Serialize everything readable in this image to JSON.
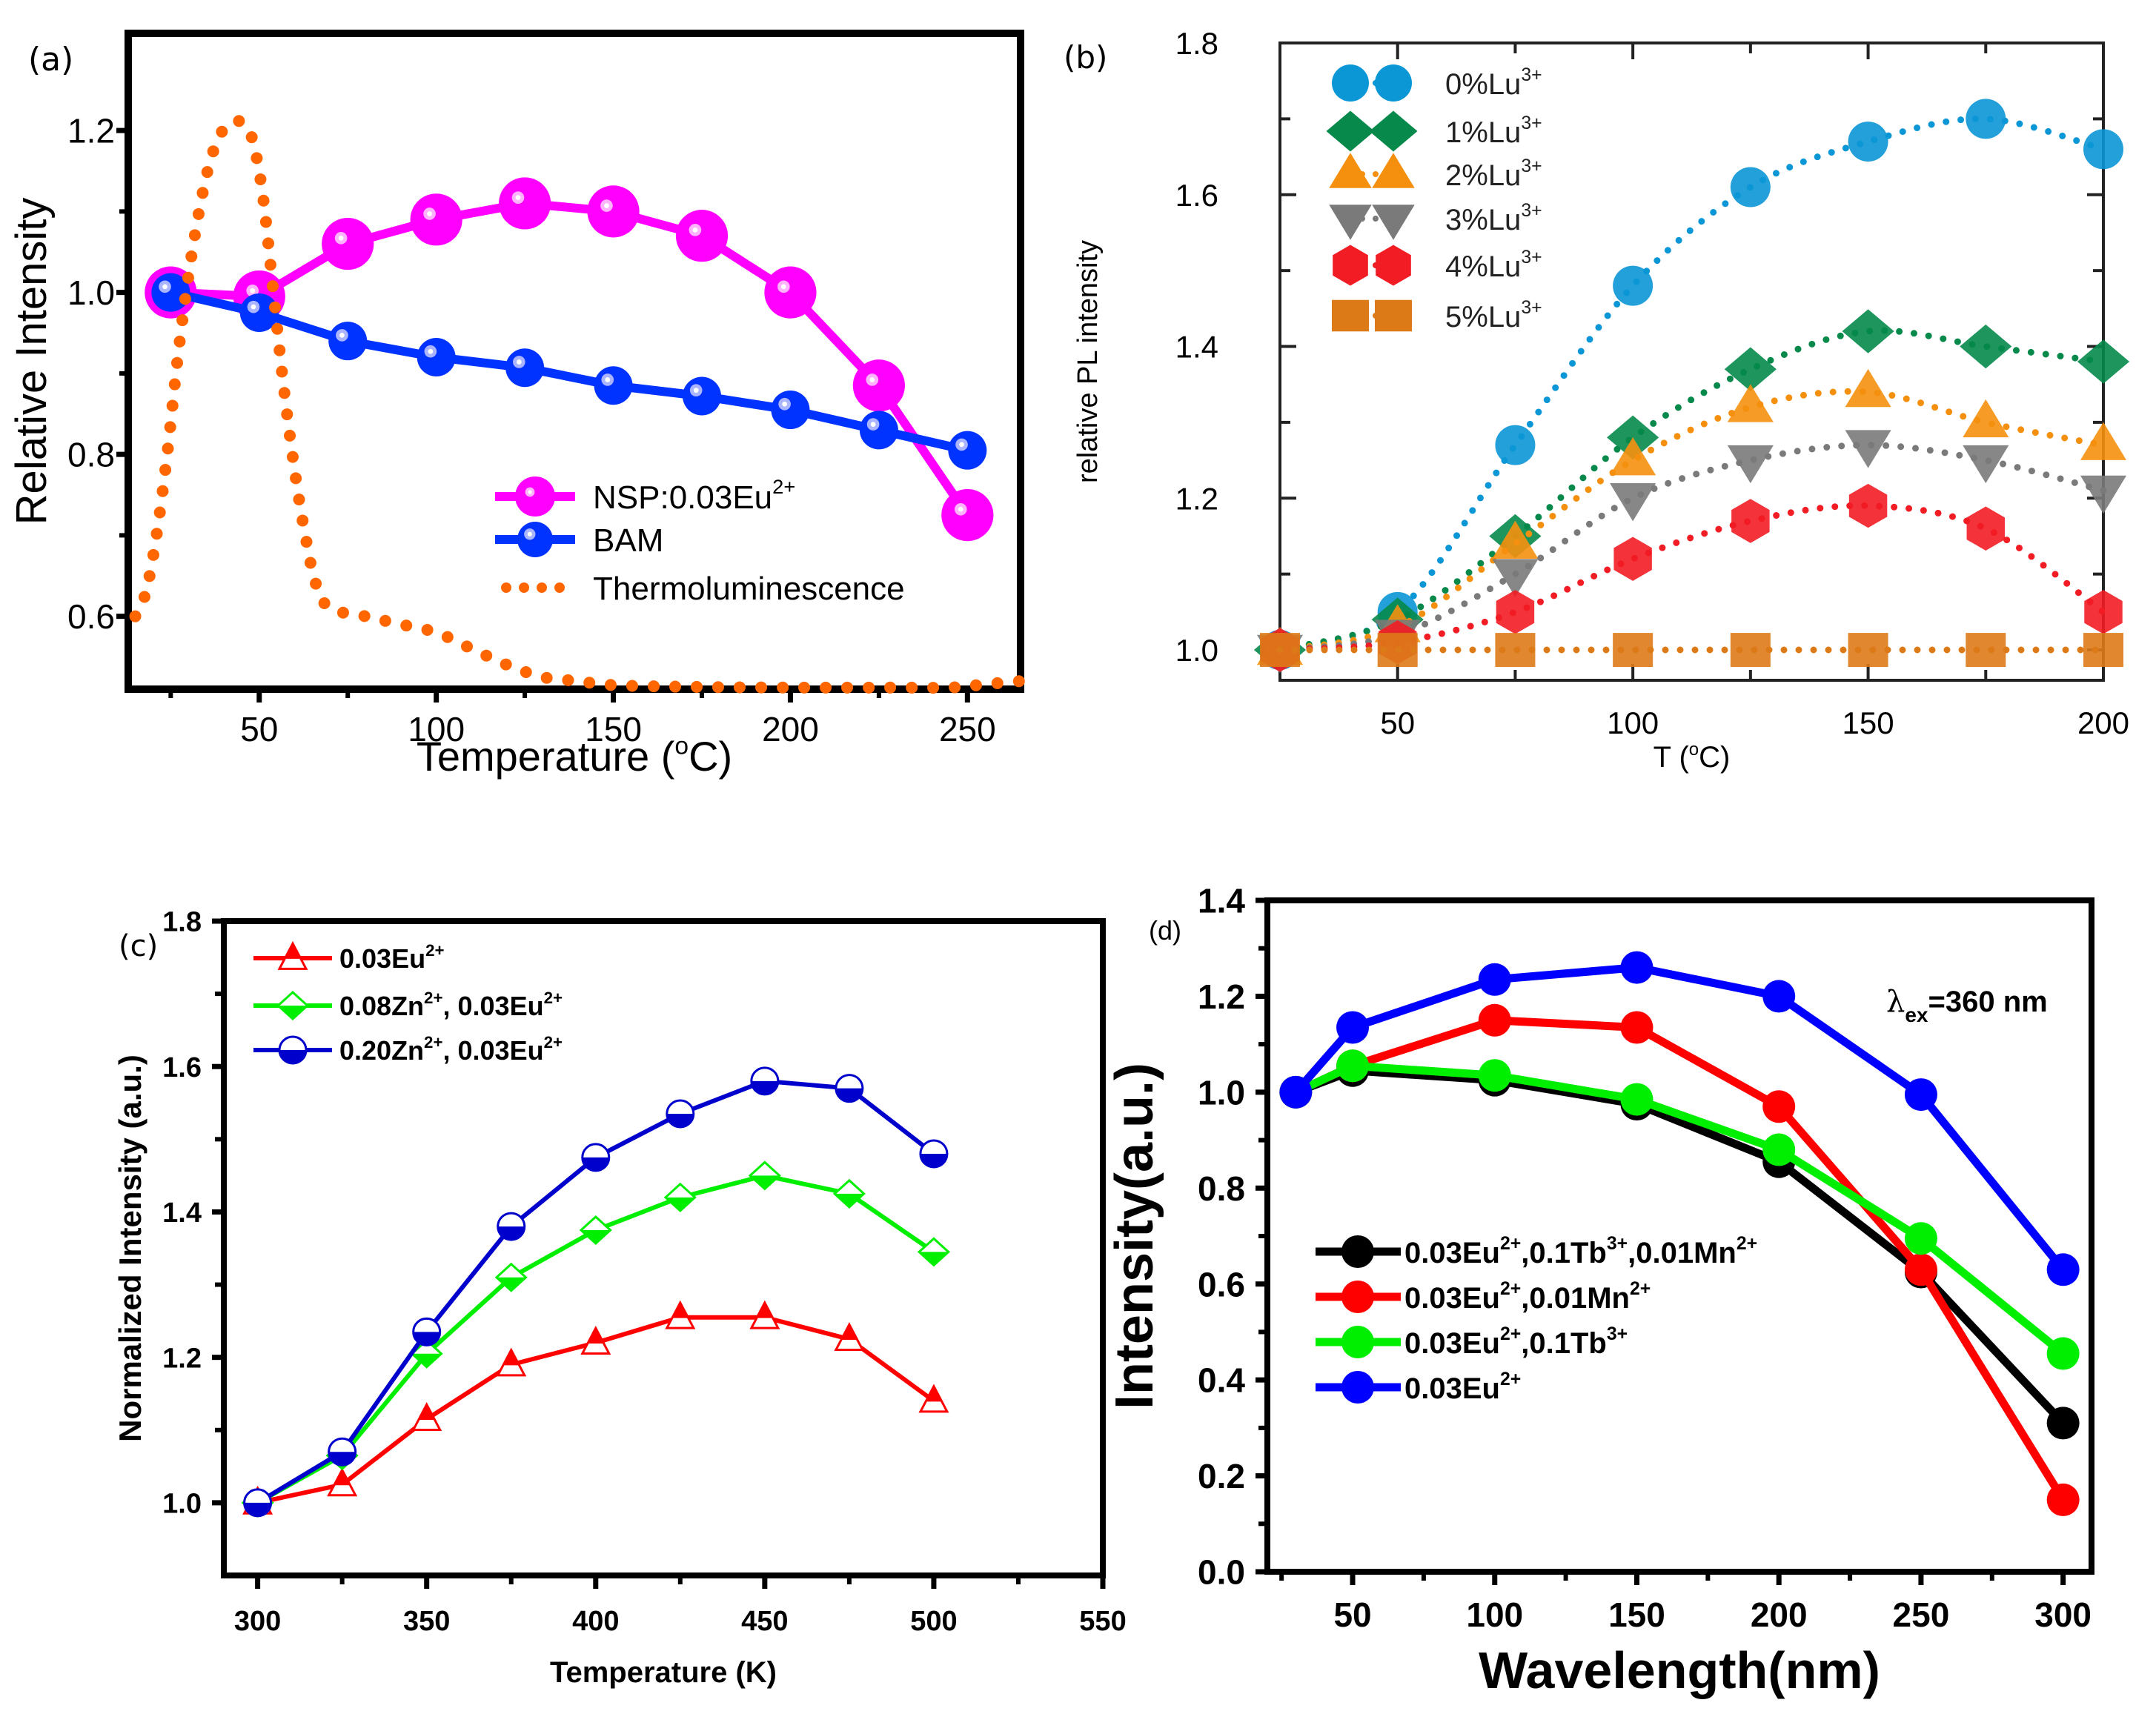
{
  "chart_data": [
    {
      "id": "a",
      "panel_label": "(a)",
      "type": "line",
      "title": "",
      "xlabel": "Temperature (",
      "xlabel_sup": "o",
      "xlabel_tail": "C)",
      "ylabel": "Relative Intensity",
      "xlim": [
        13,
        265
      ],
      "ylim": [
        0.51,
        1.32
      ],
      "xticks": [
        50,
        100,
        150,
        200,
        250
      ],
      "xminor": [
        25,
        75,
        125,
        175,
        225
      ],
      "yticks": [
        0.6,
        0.8,
        1.0,
        1.2
      ],
      "yminor": [
        0.7,
        0.9,
        1.1
      ],
      "ytick_labels": [
        "0.6",
        "0.8",
        "1.0",
        "1.2"
      ],
      "grid": false,
      "legend": "bottom-right",
      "series": [
        {
          "name": "NSP:0.03Eu",
          "name_sup": "2+",
          "color": "#ff00ff",
          "marker": "circle-large",
          "x": [
            25,
            50,
            75,
            100,
            125,
            150,
            175,
            200,
            225,
            250
          ],
          "y": [
            1.0,
            0.995,
            1.06,
            1.09,
            1.11,
            1.1,
            1.07,
            1.0,
            0.885,
            0.725
          ]
        },
        {
          "name": "BAM",
          "name_sup": "",
          "color": "#0033ff",
          "marker": "circle",
          "x": [
            25,
            50,
            75,
            100,
            125,
            150,
            175,
            200,
            225,
            250
          ],
          "y": [
            1.0,
            0.975,
            0.94,
            0.92,
            0.907,
            0.885,
            0.872,
            0.855,
            0.83,
            0.805
          ]
        },
        {
          "name": "Thermoluminescence",
          "name_sup": "",
          "color": "#ff6600",
          "marker": "dotted",
          "x": [
            15,
            18,
            21,
            24,
            27,
            30,
            33,
            36,
            39,
            42,
            45,
            48,
            51,
            54,
            57,
            60,
            63,
            66,
            70,
            80,
            90,
            100,
            110,
            120,
            130,
            140,
            150,
            170,
            200,
            230,
            245,
            255,
            265
          ],
          "y": [
            0.6,
            0.63,
            0.7,
            0.8,
            0.92,
            1.02,
            1.1,
            1.16,
            1.195,
            1.21,
            1.21,
            1.19,
            1.12,
            1.0,
            0.88,
            0.78,
            0.7,
            0.64,
            0.61,
            0.6,
            0.59,
            0.58,
            0.56,
            0.54,
            0.525,
            0.52,
            0.515,
            0.513,
            0.512,
            0.512,
            0.512,
            0.516,
            0.52
          ]
        }
      ]
    },
    {
      "id": "b",
      "panel_label": "(b)",
      "type": "scatter",
      "title": "",
      "xlabel": "T (",
      "xlabel_sup": "o",
      "xlabel_tail": "C)",
      "ylabel": "relative PL intensity",
      "xlim": [
        25,
        200
      ],
      "ylim": [
        0.96,
        1.8
      ],
      "xticks": [
        50,
        100,
        150,
        200
      ],
      "xminor": [
        75,
        125,
        175
      ],
      "yticks": [
        1.0,
        1.2,
        1.4,
        1.6,
        1.8
      ],
      "yminor": [
        1.1,
        1.3,
        1.5,
        1.7
      ],
      "ytick_labels": [
        "1.0",
        "1.2",
        "1.4",
        "1.6",
        "1.8"
      ],
      "grid": false,
      "legend": "top-left",
      "series": [
        {
          "name": "0%Lu",
          "name_sup": "3+",
          "color": "#0b96d6",
          "marker": "circle",
          "x": [
            25,
            50,
            75,
            100,
            125,
            150,
            175,
            200
          ],
          "y": [
            1.0,
            1.05,
            1.27,
            1.48,
            1.61,
            1.67,
            1.7,
            1.66
          ]
        },
        {
          "name": "1%Lu",
          "name_sup": "3+",
          "color": "#06894a",
          "marker": "diamond",
          "x": [
            25,
            50,
            75,
            100,
            125,
            150,
            175,
            200
          ],
          "y": [
            1.0,
            1.04,
            1.15,
            1.28,
            1.37,
            1.42,
            1.4,
            1.38
          ]
        },
        {
          "name": "2%Lu",
          "name_sup": "3+",
          "color": "#f5900e",
          "marker": "triangle-up",
          "x": [
            25,
            50,
            75,
            100,
            125,
            150,
            175,
            200
          ],
          "y": [
            1.0,
            1.03,
            1.14,
            1.25,
            1.32,
            1.34,
            1.3,
            1.27
          ]
        },
        {
          "name": "3%Lu",
          "name_sup": "3+",
          "color": "#7a7a7a",
          "marker": "triangle-down",
          "x": [
            25,
            50,
            75,
            100,
            125,
            150,
            175,
            200
          ],
          "y": [
            1.0,
            1.02,
            1.1,
            1.2,
            1.25,
            1.27,
            1.25,
            1.21
          ]
        },
        {
          "name": "4%Lu",
          "name_sup": "3+",
          "color": "#f21c24",
          "marker": "hexagon",
          "x": [
            25,
            50,
            75,
            100,
            125,
            150,
            175,
            200
          ],
          "y": [
            1.0,
            1.01,
            1.05,
            1.12,
            1.17,
            1.19,
            1.16,
            1.05
          ]
        },
        {
          "name": "5%Lu",
          "name_sup": "3+",
          "color": "#dd7a18",
          "marker": "square",
          "x": [
            25,
            50,
            75,
            100,
            125,
            150,
            175,
            200
          ],
          "y": [
            1.0,
            1.0,
            1.0,
            1.0,
            1.0,
            1.0,
            1.0,
            1.0
          ]
        }
      ]
    },
    {
      "id": "c",
      "panel_label": "(c)",
      "type": "line",
      "title": "",
      "xlabel": "Temperature (K)",
      "ylabel": "Normalized Intensity (a.u.)",
      "xlim": [
        290,
        550
      ],
      "ylim": [
        0.9,
        1.8
      ],
      "xticks": [
        300,
        350,
        400,
        450,
        500,
        550
      ],
      "xminor": [
        325,
        375,
        425,
        475,
        525
      ],
      "yticks": [
        1.0,
        1.2,
        1.4,
        1.6,
        1.8
      ],
      "yminor": [
        1.1,
        1.3,
        1.5,
        1.7
      ],
      "ytick_labels": [
        "1.0",
        "1.2",
        "1.4",
        "1.6",
        "1.8"
      ],
      "grid": false,
      "legend": "top-left",
      "series": [
        {
          "name": "0.03Eu",
          "name_parts": [
            [
              "0.03Eu",
              "2+"
            ]
          ],
          "color": "#ff0000",
          "marker": "half-triangle",
          "x": [
            300,
            325,
            350,
            375,
            400,
            425,
            450,
            475,
            500
          ],
          "y": [
            1.0,
            1.025,
            1.115,
            1.19,
            1.22,
            1.255,
            1.255,
            1.225,
            1.14
          ]
        },
        {
          "name": "0.08Zn, 0.03Eu",
          "name_parts": [
            [
              "0.08Zn",
              "2+"
            ],
            [
              ", 0.03Eu",
              "2+"
            ]
          ],
          "color": "#00ee00",
          "marker": "half-diamond",
          "x": [
            300,
            325,
            350,
            375,
            400,
            425,
            450,
            475,
            500
          ],
          "y": [
            1.0,
            1.065,
            1.205,
            1.31,
            1.375,
            1.42,
            1.45,
            1.425,
            1.345
          ]
        },
        {
          "name": "0.20Zn, 0.03Eu",
          "name_parts": [
            [
              "0.20Zn",
              "2+"
            ],
            [
              ", 0.03Eu",
              "2+"
            ]
          ],
          "color": "#0000cc",
          "marker": "half-circle",
          "x": [
            300,
            325,
            350,
            375,
            400,
            425,
            450,
            475,
            500
          ],
          "y": [
            1.0,
            1.07,
            1.235,
            1.38,
            1.475,
            1.535,
            1.58,
            1.57,
            1.48
          ]
        }
      ]
    },
    {
      "id": "d",
      "panel_label": "(d)",
      "type": "line",
      "title": "",
      "xlabel": "Wavelength(nm)",
      "ylabel": "Intensity(a.u.)",
      "annotation": {
        "symbol": "λ",
        "sub": "ex",
        "text": "=360 nm"
      },
      "xlim": [
        20,
        310
      ],
      "ylim": [
        0.0,
        1.4
      ],
      "xticks": [
        50,
        100,
        150,
        200,
        250,
        300
      ],
      "xminor": [
        25,
        75,
        125,
        175,
        225,
        275
      ],
      "yticks": [
        0.0,
        0.2,
        0.4,
        0.6,
        0.8,
        1.0,
        1.2,
        1.4
      ],
      "yminor": [
        0.1,
        0.3,
        0.5,
        0.7,
        0.9,
        1.1,
        1.3
      ],
      "ytick_labels": [
        "0.0",
        "0.2",
        "0.4",
        "0.6",
        "0.8",
        "1.0",
        "1.2",
        "1.4"
      ],
      "grid": false,
      "legend": "middle-left",
      "series": [
        {
          "name": "0.03Eu,0.1Tb,0.01Mn",
          "name_parts": [
            [
              "0.03Eu",
              "2+"
            ],
            [
              ",0.1Tb",
              "3+"
            ],
            [
              ",0.01Mn",
              "2+"
            ]
          ],
          "color": "#000000",
          "marker": "circle",
          "x": [
            30,
            50,
            100,
            150,
            200,
            250,
            300
          ],
          "y": [
            1.0,
            1.045,
            1.025,
            0.975,
            0.855,
            0.625,
            0.31
          ]
        },
        {
          "name": "0.03Eu,0.01Mn",
          "name_parts": [
            [
              "0.03Eu",
              "2+"
            ],
            [
              ",0.01Mn",
              "2+"
            ]
          ],
          "color": "#ff0000",
          "marker": "circle",
          "x": [
            30,
            50,
            100,
            150,
            200,
            250,
            300
          ],
          "y": [
            1.0,
            1.055,
            1.15,
            1.135,
            0.97,
            0.63,
            0.15
          ]
        },
        {
          "name": "0.03Eu,0.1Tb",
          "name_parts": [
            [
              "0.03Eu",
              "2+"
            ],
            [
              ",0.1Tb",
              "3+"
            ]
          ],
          "color": "#00ee00",
          "marker": "circle",
          "x": [
            30,
            50,
            100,
            150,
            200,
            250,
            300
          ],
          "y": [
            1.0,
            1.055,
            1.035,
            0.985,
            0.88,
            0.695,
            0.455
          ]
        },
        {
          "name": "0.03Eu",
          "name_parts": [
            [
              "0.03Eu",
              "2+"
            ]
          ],
          "color": "#0000ff",
          "marker": "circle",
          "x": [
            30,
            50,
            100,
            150,
            200,
            250,
            300
          ],
          "y": [
            1.0,
            1.135,
            1.235,
            1.26,
            1.2,
            0.995,
            0.63
          ]
        }
      ]
    }
  ]
}
